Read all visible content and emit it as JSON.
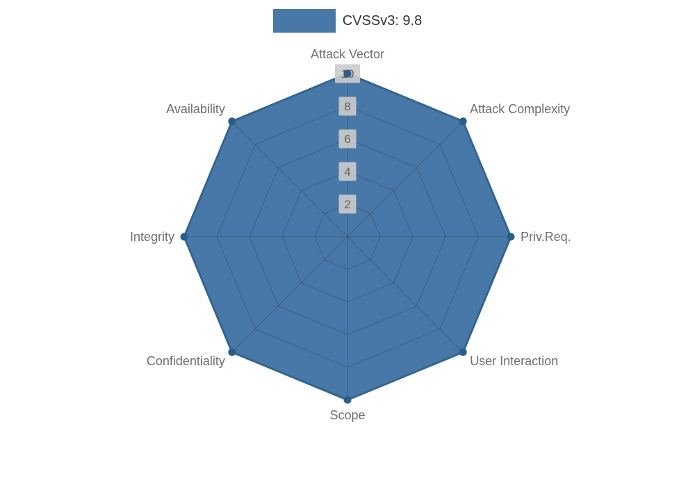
{
  "legend": {
    "label": "CVSSv3: 9.8"
  },
  "chart_data": {
    "type": "radar",
    "title": "CVSSv3: 9.8",
    "categories": [
      "Attack Vector",
      "Attack Complexity",
      "Priv.Req.",
      "User Interaction",
      "Scope",
      "Confidentiality",
      "Integrity",
      "Availability"
    ],
    "series": [
      {
        "name": "CVSSv3: 9.8",
        "values": [
          10,
          10,
          10,
          10,
          10,
          10,
          10,
          10
        ]
      }
    ],
    "ticks": [
      2,
      4,
      6,
      8,
      10
    ],
    "range": [
      0,
      10
    ],
    "legend_position": "top-center",
    "grid": true,
    "colors": {
      "fill": "#4878a8",
      "outline": "#34648f",
      "point": "#2d5c8a",
      "grid_line": "rgba(45,55,65,0.38)",
      "axis_label": "#6e6e6e",
      "tick_text": "#5f5f5f",
      "tick_bg": "#cbcbcb",
      "legend_text": "#333333",
      "background": "#ffffff"
    }
  }
}
